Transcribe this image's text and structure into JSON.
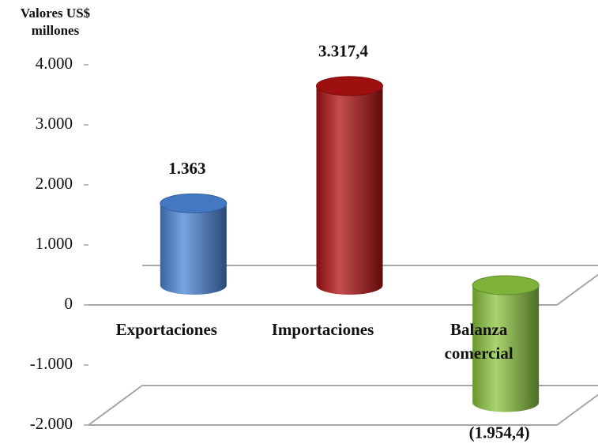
{
  "chart_data": {
    "type": "cylinder",
    "y_label": "Valores US$ millones",
    "categories": [
      "Exportaciones",
      "Importaciones",
      "Balanza comercial"
    ],
    "values": [
      1363,
      3317.4,
      -1954.4
    ],
    "value_labels": [
      "1.363",
      "3.317,4",
      "(1.954,4)"
    ],
    "colors": [
      "#4a86d8",
      "#b01212",
      "#8cc63f"
    ],
    "ylim": [
      -2000,
      4000
    ],
    "yticks": [
      {
        "value": -2000,
        "label": "-2.000"
      },
      {
        "value": -1000,
        "label": "-1.000"
      },
      0,
      {
        "value": 1000,
        "label": "1.000"
      },
      {
        "value": 2000,
        "label": "2.000"
      },
      {
        "value": 3000,
        "label": "3.000"
      },
      {
        "value": 4000,
        "label": "4.000"
      }
    ],
    "grid": false
  }
}
